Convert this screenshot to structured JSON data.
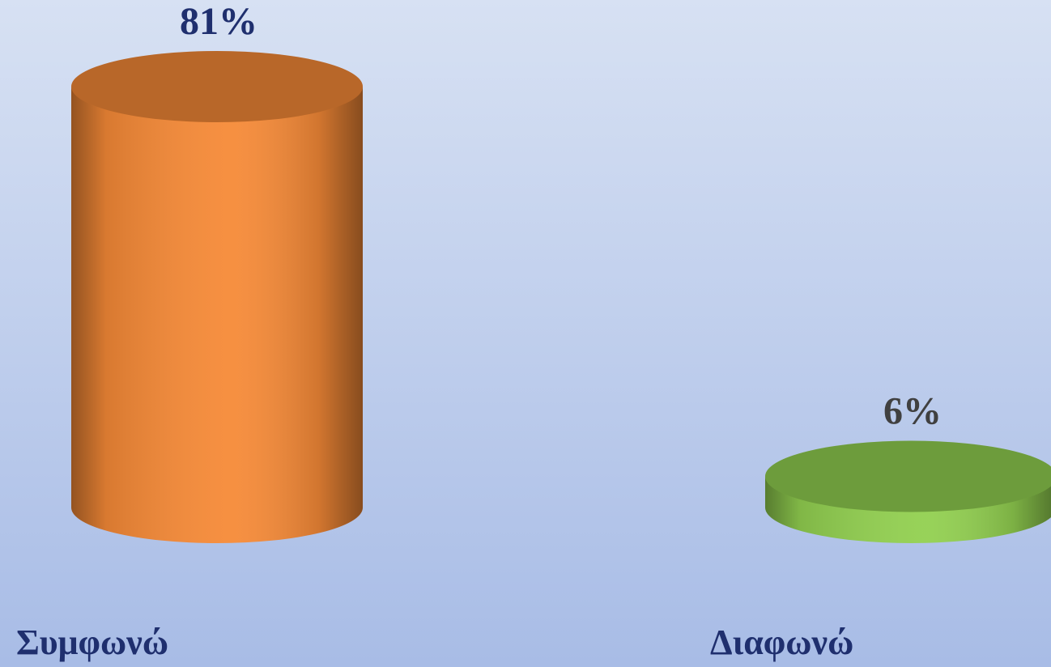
{
  "chart_data": {
    "type": "cylinder",
    "categories": [
      "Συμφωνώ",
      "Διαφωνώ"
    ],
    "values": [
      81,
      6
    ],
    "value_labels": [
      "81%",
      "6%"
    ],
    "colors": [
      "#f68a37",
      "#92d050"
    ],
    "label_colors": [
      "#1f2f6e",
      "#404040"
    ]
  }
}
